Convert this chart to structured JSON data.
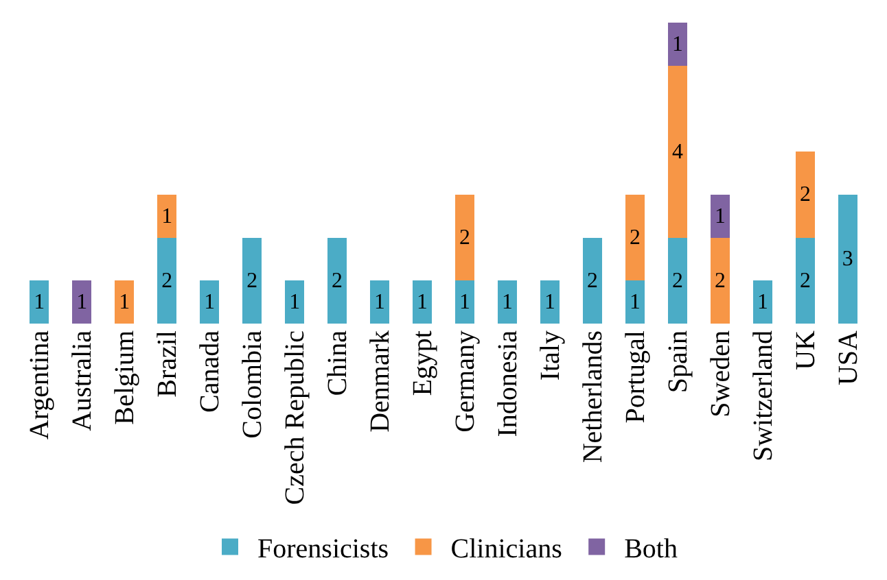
{
  "chart_data": {
    "type": "bar",
    "stacked": true,
    "data_labels": true,
    "legend": "bottom",
    "categories": [
      "Argentina",
      "Australia",
      "Belgium",
      "Brazil",
      "Canada",
      "Colombia",
      "Czech Republic",
      "China",
      "Denmark",
      "Egypt",
      "Germany",
      "Indonesia",
      "Italy",
      "Netherlands",
      "Portugal",
      "Spain",
      "Sweden",
      "Switzerland",
      "UK",
      "USA"
    ],
    "series": [
      {
        "name": "Forensicists",
        "color": "#4bacc6",
        "values": [
          1,
          null,
          null,
          2,
          1,
          2,
          1,
          2,
          1,
          1,
          1,
          1,
          1,
          2,
          1,
          2,
          null,
          1,
          2,
          3
        ]
      },
      {
        "name": "Clinicians",
        "color": "#f79646",
        "values": [
          null,
          null,
          1,
          1,
          null,
          null,
          null,
          null,
          null,
          null,
          2,
          null,
          null,
          null,
          2,
          4,
          2,
          null,
          2,
          null
        ]
      },
      {
        "name": "Both",
        "color": "#8064a2",
        "values": [
          null,
          1,
          null,
          null,
          null,
          null,
          null,
          null,
          null,
          null,
          null,
          null,
          null,
          null,
          null,
          1,
          1,
          null,
          null,
          null
        ]
      }
    ]
  }
}
